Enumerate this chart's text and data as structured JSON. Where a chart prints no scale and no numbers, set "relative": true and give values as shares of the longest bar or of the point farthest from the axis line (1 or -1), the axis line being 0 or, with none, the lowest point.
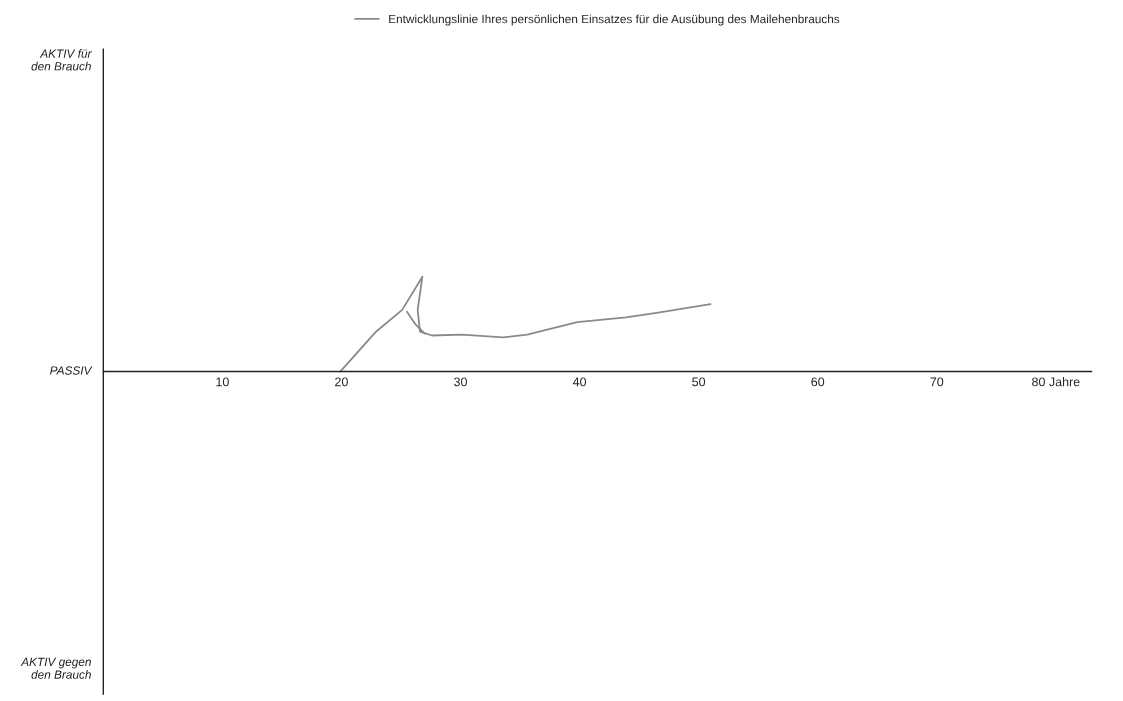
{
  "chart_data": {
    "type": "line",
    "relative": true,
    "legend": "top",
    "grid": false,
    "marker": "none",
    "line_style": "solid",
    "xlim": [
      0,
      83
    ],
    "xticks": [
      10,
      20,
      30,
      40,
      50,
      60,
      70,
      {
        "value": 80,
        "label": "80 Jahre"
      }
    ],
    "annotations": [
      "AKTIV für\nden Brauch",
      "PASSIV",
      "AKTIV gegen\nden Brauch"
    ],
    "series": [
      {
        "name": "Entwicklungslinie Ihres persönlichen Einsatzes für die Ausübung des Mailehenbrauchs",
        "color": "#8a8a8a",
        "x": [
          19.9,
          22.9,
          25.1,
          26.8,
          26.4,
          26.6,
          27.6,
          30.1,
          33.6,
          35.6,
          39.8,
          43.9,
          46.6,
          51.0
        ],
        "values": [
          0,
          0.42,
          0.65,
          1,
          0.65,
          0.42,
          0.38,
          0.39,
          0.36,
          0.39,
          0.52,
          0.57,
          0.62,
          0.71
        ]
      },
      {
        "color": "#8a8a8a",
        "x": [
          25.5,
          26.2,
          27.0
        ],
        "values": [
          0.63,
          0.5,
          0.4
        ]
      }
    ]
  }
}
